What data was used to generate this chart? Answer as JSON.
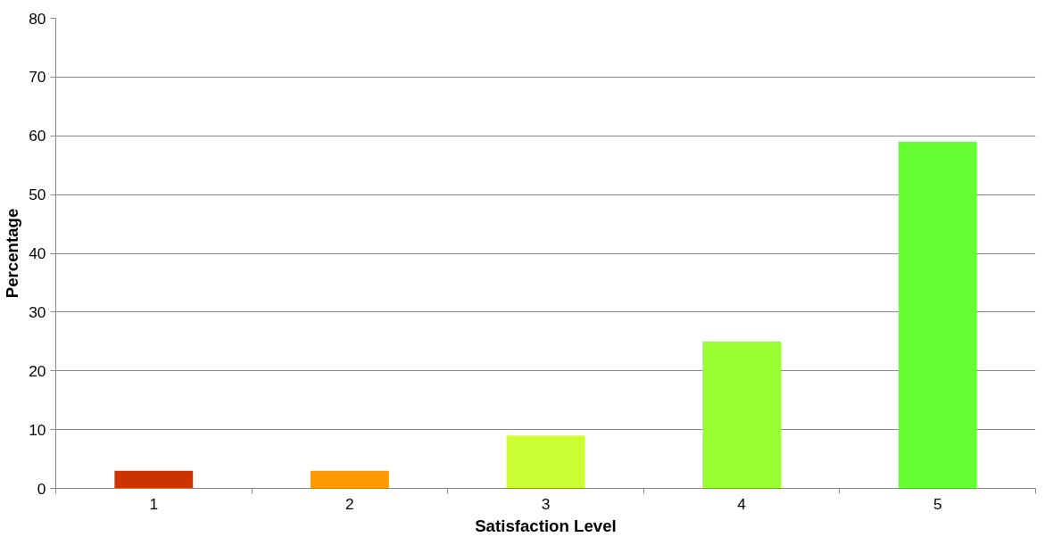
{
  "chart_data": {
    "type": "bar",
    "xlabel": "Satisfaction Level",
    "ylabel": "Percentage",
    "categories": [
      "1",
      "2",
      "3",
      "4",
      "5"
    ],
    "values": [
      3,
      3,
      9,
      25,
      59
    ],
    "colors": [
      "#cc3300",
      "#ff9900",
      "#ccff33",
      "#99ff33",
      "#66ff33"
    ],
    "ylim": [
      0,
      80
    ],
    "yticks": [
      0,
      10,
      20,
      30,
      40,
      50,
      60,
      70,
      80
    ],
    "grid": "y"
  }
}
